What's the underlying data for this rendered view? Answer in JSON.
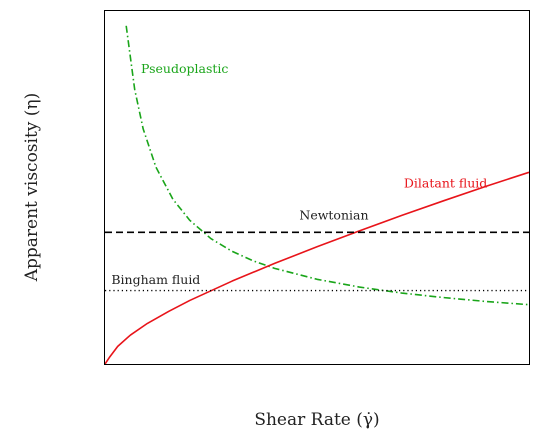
{
  "chart_data": {
    "type": "line",
    "title": "",
    "xlabel": "Shear Rate (γ̇)",
    "ylabel": "Apparent viscosity (η)",
    "xlim": [
      0,
      10
    ],
    "ylim": [
      0,
      10
    ],
    "grid": false,
    "legend": "none",
    "show_ticks": false,
    "series": [
      {
        "name": "Pseudoplastic",
        "color": "#1aa51a",
        "style": "dashdot",
        "x": [
          0.5,
          0.7,
          0.9,
          1.2,
          1.6,
          2.0,
          2.5,
          3.0,
          3.5,
          4.0,
          5.0,
          6.0,
          7.0,
          8.0,
          9.0,
          10.0
        ],
        "y": [
          9.58,
          7.78,
          6.66,
          5.58,
          4.67,
          4.07,
          3.55,
          3.19,
          2.92,
          2.71,
          2.4,
          2.18,
          2.01,
          1.88,
          1.77,
          1.68
        ]
      },
      {
        "name": "Dilatant fluid",
        "color": "#e8141a",
        "style": "solid",
        "x": [
          0.0,
          0.1,
          0.3,
          0.6,
          1.0,
          1.5,
          2.0,
          3.0,
          4.0,
          5.0,
          6.0,
          7.0,
          8.0,
          9.0,
          10.0
        ],
        "y": [
          0.0,
          0.18,
          0.5,
          0.82,
          1.15,
          1.49,
          1.8,
          2.35,
          2.85,
          3.32,
          3.77,
          4.21,
          4.63,
          5.04,
          5.43
        ]
      },
      {
        "name": "Newtonian",
        "color": "#000000",
        "style": "dashed",
        "x": [
          0,
          10
        ],
        "y": [
          3.73,
          3.73
        ]
      },
      {
        "name": "Bingham fluid",
        "color": "#000000",
        "style": "dotted",
        "x": [
          0,
          10
        ],
        "y": [
          2.08,
          2.08
        ]
      }
    ],
    "annotations": [
      {
        "text": "Pseudoplastic",
        "x": 0.85,
        "y": 8.25,
        "color": "#1aa51a",
        "anchor": "start"
      },
      {
        "text": "Dilatant fluid",
        "x": 7.05,
        "y": 5.0,
        "color": "#e8141a",
        "anchor": "start"
      },
      {
        "text": "Newtonian",
        "x": 5.4,
        "y": 4.1,
        "color": "#222222",
        "anchor": "middle"
      },
      {
        "text": "Bingham fluid",
        "x": 0.15,
        "y": 2.27,
        "color": "#222222",
        "anchor": "start"
      }
    ]
  }
}
